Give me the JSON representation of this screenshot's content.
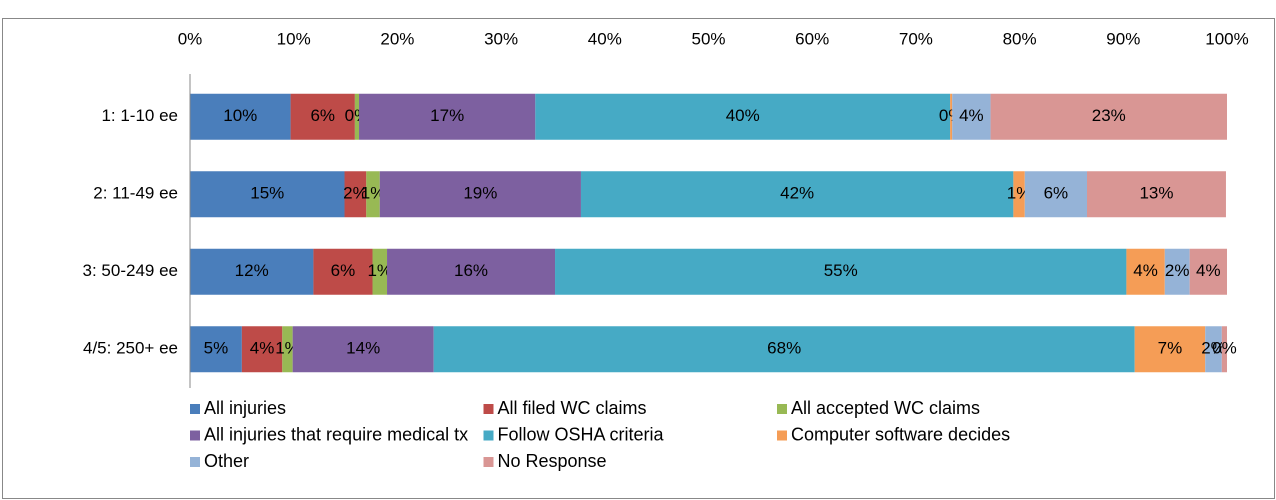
{
  "chart_data": {
    "type": "stacked-bar-horizontal",
    "categories": [
      "1: 1-10 ee",
      "2: 11-49 ee",
      "3: 50-249 ee",
      "4/5: 250+ ee"
    ],
    "series": [
      {
        "name": "All injuries",
        "color": "#4a7ebb",
        "values": [
          9.7,
          14.9,
          11.9,
          5.0
        ],
        "value_labels": [
          "10%",
          "15%",
          "12%",
          "5%"
        ]
      },
      {
        "name": "All filed WC claims",
        "color": "#be4b48",
        "values": [
          6.2,
          2.1,
          5.7,
          3.9
        ],
        "value_labels": [
          "6%",
          "2%",
          "6%",
          "4%"
        ]
      },
      {
        "name": "All accepted WC claims",
        "color": "#98b954",
        "values": [
          0.4,
          1.3,
          1.4,
          1.0
        ],
        "value_labels": [
          "0%",
          "1%",
          "1%",
          "1%"
        ]
      },
      {
        "name": "All injuries that require medical tx",
        "color": "#7d60a0",
        "values": [
          17.0,
          19.4,
          16.2,
          13.6
        ],
        "value_labels": [
          "17%",
          "19%",
          "16%",
          "14%"
        ]
      },
      {
        "name": "Follow OSHA criteria",
        "color": "#46aac5",
        "values": [
          40.0,
          41.7,
          55.1,
          67.6
        ],
        "value_labels": [
          "40%",
          "42%",
          "55%",
          "68%"
        ]
      },
      {
        "name": "Computer software decides",
        "color": "#f59d56",
        "values": [
          0.2,
          1.1,
          3.7,
          6.8
        ],
        "value_labels": [
          "0%",
          "1%",
          "4%",
          "7%"
        ]
      },
      {
        "name": "Other",
        "color": "#95b3d7",
        "values": [
          3.7,
          6.0,
          2.4,
          1.6
        ],
        "value_labels": [
          "4%",
          "6%",
          "2%",
          "2%"
        ]
      },
      {
        "name": "No Response",
        "color": "#d99694",
        "values": [
          22.8,
          13.4,
          3.6,
          0.5
        ],
        "value_labels": [
          "23%",
          "13%",
          "4%",
          "0%"
        ]
      }
    ],
    "xlim": [
      0,
      100
    ],
    "xticks": [
      {
        "value": 0,
        "label": "0%"
      },
      {
        "value": 10,
        "label": "10%"
      },
      {
        "value": 20,
        "label": "20%"
      },
      {
        "value": 30,
        "label": "30%"
      },
      {
        "value": 40,
        "label": "40%"
      },
      {
        "value": 50,
        "label": "50%"
      },
      {
        "value": 60,
        "label": "60%"
      },
      {
        "value": 70,
        "label": "70%"
      },
      {
        "value": 80,
        "label": "80%"
      },
      {
        "value": 90,
        "label": "90%"
      },
      {
        "value": 100,
        "label": "100%"
      }
    ],
    "legend": "bottom"
  }
}
